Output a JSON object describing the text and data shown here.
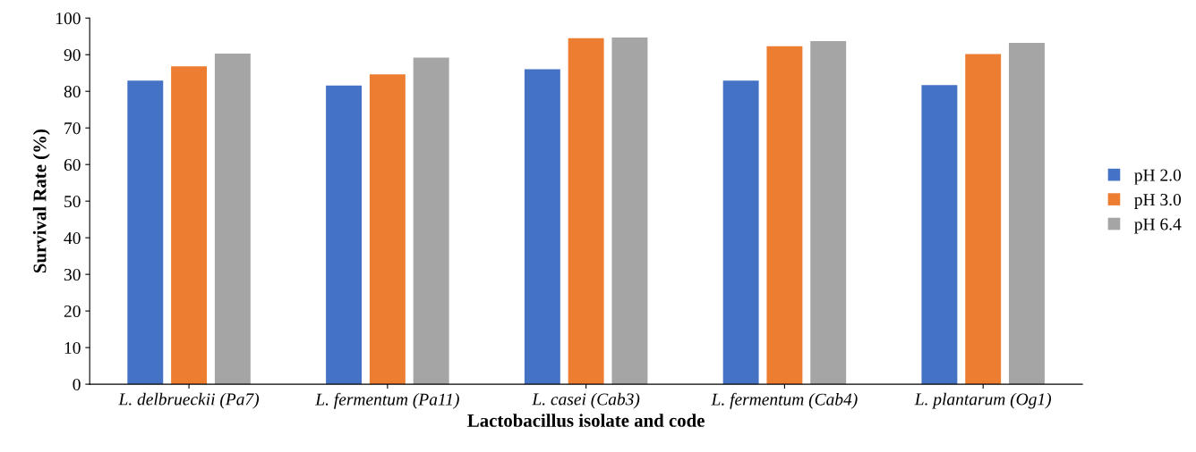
{
  "chart_data": {
    "type": "bar",
    "xlabel": "Lactobacillus isolate and code",
    "ylabel": "Survival Rate (%)",
    "categories": [
      "L. delbrueckii (Pa7)",
      "L. fermentum (Pa11)",
      "L. casei (Cab3)",
      "L. fermentum (Cab4)",
      "L. plantarum (Og1)"
    ],
    "series": [
      {
        "name": "pH 2.0",
        "color": "#4472c4",
        "values": [
          82.9,
          81.6,
          86.0,
          82.9,
          81.7
        ]
      },
      {
        "name": "pH 3.0",
        "color": "#ed7d31",
        "values": [
          86.8,
          84.6,
          94.5,
          92.3,
          90.2
        ]
      },
      {
        "name": "pH 6.4",
        "color": "#a5a5a5",
        "values": [
          90.3,
          89.2,
          94.7,
          93.7,
          93.2
        ]
      }
    ],
    "ylim": [
      0,
      100
    ],
    "yticks": [
      0,
      10,
      20,
      30,
      40,
      50,
      60,
      70,
      80,
      90,
      100
    ],
    "grid": false,
    "legend": "right"
  }
}
